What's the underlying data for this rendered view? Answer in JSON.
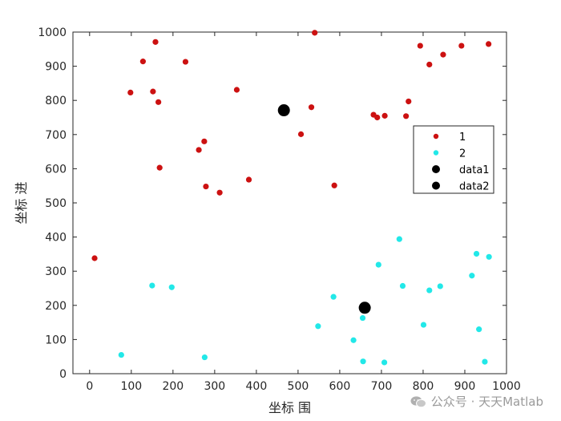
{
  "chart_data": {
    "type": "scatter",
    "xlabel": "坐标 围",
    "ylabel": "坐标 进",
    "xlim": [
      -40,
      1000
    ],
    "ylim": [
      0,
      1000
    ],
    "xticks": [
      0,
      100,
      200,
      300,
      400,
      500,
      600,
      700,
      800,
      900,
      1000
    ],
    "yticks": [
      0,
      100,
      200,
      300,
      400,
      500,
      600,
      700,
      800,
      900,
      1000
    ],
    "grid": false,
    "legend_position": "right",
    "series": [
      {
        "name": "1",
        "color": "#cc1111",
        "marker": "dot",
        "points": [
          [
            12,
            338
          ],
          [
            98,
            823
          ],
          [
            128,
            914
          ],
          [
            152,
            826
          ],
          [
            158,
            971
          ],
          [
            165,
            795
          ],
          [
            168,
            603
          ],
          [
            230,
            913
          ],
          [
            262,
            655
          ],
          [
            275,
            680
          ],
          [
            279,
            548
          ],
          [
            312,
            530
          ],
          [
            353,
            831
          ],
          [
            382,
            568
          ],
          [
            507,
            701
          ],
          [
            532,
            780
          ],
          [
            540,
            998
          ],
          [
            587,
            551
          ],
          [
            681,
            758
          ],
          [
            690,
            750
          ],
          [
            708,
            755
          ],
          [
            759,
            754
          ],
          [
            765,
            797
          ],
          [
            793,
            960
          ],
          [
            815,
            905
          ],
          [
            848,
            934
          ],
          [
            892,
            960
          ],
          [
            957,
            965
          ]
        ]
      },
      {
        "name": "2",
        "color": "#22e8e8",
        "marker": "dot",
        "points": [
          [
            76,
            55
          ],
          [
            150,
            258
          ],
          [
            197,
            253
          ],
          [
            276,
            48
          ],
          [
            548,
            139
          ],
          [
            585,
            225
          ],
          [
            633,
            98
          ],
          [
            655,
            163
          ],
          [
            656,
            36
          ],
          [
            693,
            319
          ],
          [
            707,
            33
          ],
          [
            743,
            394
          ],
          [
            751,
            257
          ],
          [
            801,
            143
          ],
          [
            815,
            244
          ],
          [
            841,
            256
          ],
          [
            917,
            287
          ],
          [
            928,
            351
          ],
          [
            934,
            130
          ],
          [
            948,
            35
          ],
          [
            958,
            342
          ]
        ]
      },
      {
        "name": "data1",
        "color": "#000000",
        "marker": "big-dot",
        "points": [
          [
            466,
            771
          ]
        ]
      },
      {
        "name": "data2",
        "color": "#000000",
        "marker": "big-dot",
        "points": [
          [
            660,
            193
          ]
        ]
      }
    ]
  },
  "watermark": {
    "text": "公众号 · 天天Matlab",
    "icon": "wechat-icon"
  }
}
